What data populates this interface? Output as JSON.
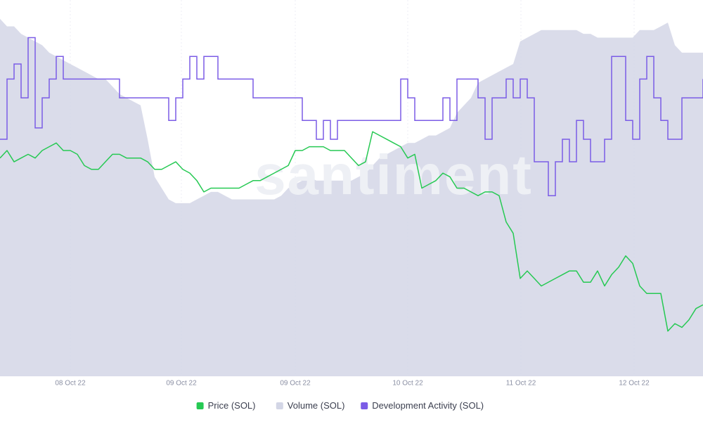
{
  "chart_data": {
    "type": "line",
    "watermark": "santiment",
    "xlim": [
      0,
      100
    ],
    "ylim": [
      0,
      100
    ],
    "x": [
      0,
      1,
      2,
      3,
      4,
      5,
      6,
      7,
      8,
      9,
      10,
      11,
      12,
      13,
      14,
      15,
      16,
      17,
      18,
      19,
      20,
      21,
      22,
      23,
      24,
      25,
      26,
      27,
      28,
      29,
      30,
      31,
      32,
      33,
      34,
      35,
      36,
      37,
      38,
      39,
      40,
      41,
      42,
      43,
      44,
      45,
      46,
      47,
      48,
      49,
      50,
      51,
      52,
      53,
      54,
      55,
      56,
      57,
      58,
      59,
      60,
      61,
      62,
      63,
      64,
      65,
      66,
      67,
      68,
      69,
      70,
      71,
      72,
      73,
      74,
      75,
      76,
      77,
      78,
      79,
      80,
      81,
      82,
      83,
      84,
      85,
      86,
      87,
      88,
      89,
      90,
      91,
      92,
      93,
      94,
      95,
      96,
      97,
      98,
      99,
      100
    ],
    "xticks": [
      {
        "value": 10,
        "label": "08 Oct 22"
      },
      {
        "value": 25.8,
        "label": "09 Oct 22"
      },
      {
        "value": 42,
        "label": "09 Oct 22"
      },
      {
        "value": 58,
        "label": "10 Oct 22"
      },
      {
        "value": 74.1,
        "label": "11 Oct 22"
      },
      {
        "value": 90.2,
        "label": "12 Oct 22"
      }
    ],
    "series": [
      {
        "name": "Price (SOL)",
        "color": "#26c953",
        "style": "line",
        "values": [
          58,
          60,
          57,
          58,
          59,
          58,
          60,
          61,
          62,
          60,
          60,
          59,
          56,
          55,
          55,
          57,
          59,
          59,
          58,
          58,
          58,
          57,
          55,
          55,
          56,
          57,
          55,
          54,
          52,
          49,
          50,
          50,
          50,
          50,
          50,
          51,
          52,
          52,
          53,
          54,
          55,
          56,
          60,
          60,
          61,
          61,
          61,
          60,
          60,
          60,
          58,
          56,
          57,
          65,
          64,
          63,
          62,
          61,
          58,
          59,
          50,
          51,
          52,
          54,
          53,
          50,
          50,
          49,
          48,
          49,
          49,
          48,
          41,
          38,
          26,
          28,
          26,
          24,
          25,
          26,
          27,
          28,
          28,
          25,
          25,
          28,
          24,
          27,
          29,
          32,
          30,
          24,
          22,
          22,
          22,
          12,
          14,
          13,
          15,
          18,
          19
        ]
      },
      {
        "name": "Volume (SOL)",
        "color": "#d3d6e6",
        "style": "area",
        "values": [
          95,
          93,
          93,
          91,
          90,
          89,
          88,
          86,
          85,
          84,
          83,
          82,
          81,
          80,
          79,
          79,
          77,
          75,
          74,
          73,
          72,
          63,
          53,
          50,
          47,
          46,
          46,
          46,
          47,
          48,
          49,
          49,
          48,
          47,
          47,
          47,
          47,
          47,
          47,
          47,
          48,
          50,
          51,
          52,
          53,
          52,
          52,
          52,
          52,
          52,
          52,
          53,
          54,
          56,
          58,
          59,
          60,
          61,
          62,
          62,
          63,
          64,
          64,
          65,
          66,
          70,
          72,
          74,
          78,
          79,
          80,
          81,
          82,
          83,
          89,
          90,
          91,
          92,
          92,
          92,
          92,
          92,
          92,
          91,
          91,
          90,
          90,
          90,
          90,
          90,
          90,
          92,
          92,
          92,
          93,
          94,
          88,
          86,
          86,
          86,
          86
        ]
      },
      {
        "name": "Development Activity (SOL)",
        "color": "#7b5ce6",
        "style": "step",
        "values": [
          63,
          79,
          83,
          74,
          90,
          66,
          74,
          79,
          85,
          79,
          79,
          79,
          79,
          79,
          79,
          79,
          79,
          74,
          74,
          74,
          74,
          74,
          74,
          74,
          68,
          74,
          79,
          85,
          79,
          85,
          85,
          79,
          79,
          79,
          79,
          79,
          74,
          74,
          74,
          74,
          74,
          74,
          74,
          68,
          68,
          63,
          68,
          63,
          68,
          68,
          68,
          68,
          68,
          68,
          68,
          68,
          68,
          79,
          74,
          68,
          68,
          68,
          68,
          74,
          68,
          79,
          79,
          79,
          74,
          63,
          74,
          74,
          79,
          74,
          79,
          74,
          57,
          57,
          48,
          57,
          63,
          57,
          68,
          63,
          57,
          57,
          63,
          85,
          85,
          68,
          63,
          79,
          85,
          74,
          68,
          63,
          63,
          74,
          74,
          74,
          79
        ]
      }
    ]
  }
}
